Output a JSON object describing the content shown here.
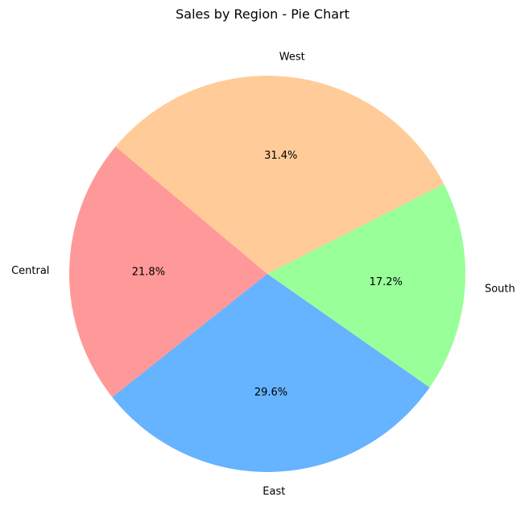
{
  "chart_data": {
    "type": "pie",
    "title": "Sales by Region - Pie Chart",
    "categories": [
      "Central",
      "East",
      "South",
      "West"
    ],
    "values": [
      21.8,
      29.6,
      17.2,
      31.4
    ],
    "value_labels": [
      "21.8%",
      "29.6%",
      "17.2%",
      "31.4%"
    ],
    "colors": [
      "#ff9999",
      "#66b3ff",
      "#99ff99",
      "#ffcc99"
    ],
    "start_angle_deg": 140,
    "direction": "counterclockwise",
    "legend": "none"
  }
}
